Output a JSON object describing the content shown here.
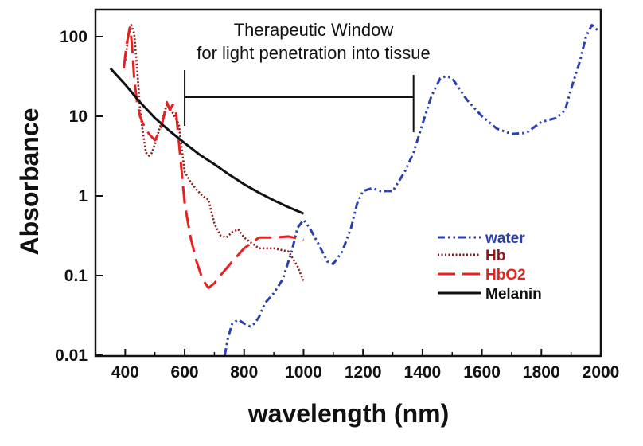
{
  "chart_data": {
    "type": "line",
    "title": "",
    "xlabel": "wavelength (nm)",
    "ylabel": "Absorbance",
    "xlim": [
      300,
      2000
    ],
    "ylim": [
      0.01,
      200
    ],
    "y_scale": "log",
    "grid": false,
    "legend_position": "center-right",
    "x_ticks": [
      400,
      600,
      800,
      1000,
      1200,
      1400,
      1600,
      1800,
      2000
    ],
    "x_tick_labels": [
      "400",
      "600",
      "800",
      "1000",
      "1200",
      "1400",
      "1600",
      "1800",
      "2000"
    ],
    "y_ticks": [
      0.01,
      0.1,
      1,
      10,
      100
    ],
    "y_tick_labels": [
      "0.01",
      "0.1",
      "1",
      "10",
      "100"
    ],
    "annotation": {
      "line1": "Therapeutic Window",
      "line2": "for light penetration into tissue",
      "range": [
        600,
        1370
      ]
    },
    "series": [
      {
        "name": "water",
        "color": "#2b3fb0",
        "dash": "dashdotdot",
        "x": [
          735,
          745,
          760,
          780,
          800,
          820,
          835,
          850,
          870,
          900,
          930,
          960,
          980,
          1000,
          1020,
          1050,
          1080,
          1100,
          1130,
          1160,
          1180,
          1200,
          1230,
          1260,
          1300,
          1340,
          1370,
          1400,
          1430,
          1460,
          1480,
          1500,
          1550,
          1600,
          1650,
          1700,
          1750,
          1800,
          1850,
          1880,
          1900,
          1930,
          1950,
          1970,
          1990
        ],
        "y": [
          0.01,
          0.016,
          0.025,
          0.028,
          0.025,
          0.023,
          0.025,
          0.03,
          0.045,
          0.06,
          0.09,
          0.2,
          0.4,
          0.5,
          0.4,
          0.25,
          0.15,
          0.14,
          0.2,
          0.4,
          0.8,
          1.15,
          1.25,
          1.15,
          1.15,
          2.0,
          3.5,
          8.0,
          18.0,
          30.0,
          32.0,
          30.0,
          16.0,
          10.0,
          7.0,
          6.0,
          6.2,
          8.5,
          9.5,
          12.0,
          22.0,
          50.0,
          100.0,
          140.0,
          120.0
        ]
      },
      {
        "name": "Hb",
        "color": "#8b1a1a",
        "dash": "dotted",
        "x": [
          400,
          410,
          420,
          430,
          440,
          450,
          460,
          470,
          480,
          490,
          500,
          520,
          540,
          560,
          580,
          600,
          620,
          640,
          660,
          680,
          700,
          720,
          740,
          760,
          780,
          800,
          850,
          900,
          950,
          980,
          1000
        ],
        "y": [
          50.0,
          100.0,
          140.0,
          110.0,
          40.0,
          12.0,
          6.0,
          3.5,
          3.2,
          3.5,
          4.5,
          8.0,
          14.0,
          11.0,
          8.0,
          2.0,
          1.5,
          1.2,
          1.0,
          0.9,
          0.45,
          0.32,
          0.3,
          0.35,
          0.38,
          0.3,
          0.22,
          0.22,
          0.2,
          0.13,
          0.085
        ]
      },
      {
        "name": "HbO2",
        "color": "#e82020",
        "dash": "longdash",
        "x": [
          395,
          405,
          415,
          420,
          425,
          430,
          440,
          450,
          460,
          480,
          500,
          520,
          530,
          540,
          550,
          560,
          570,
          580,
          600,
          620,
          640,
          660,
          680,
          700,
          720,
          760,
          800,
          850,
          900,
          950,
          1000
        ],
        "y": [
          40.0,
          80.0,
          130.0,
          100.0,
          60.0,
          30.0,
          15.0,
          10.0,
          8.0,
          6.0,
          5.0,
          7.0,
          10.0,
          15.0,
          12.0,
          14.0,
          12.0,
          5.0,
          0.8,
          0.3,
          0.15,
          0.09,
          0.07,
          0.08,
          0.1,
          0.15,
          0.22,
          0.3,
          0.3,
          0.31,
          0.28
        ]
      },
      {
        "name": "Melanin",
        "color": "#111111",
        "dash": "solid",
        "x": [
          350,
          400,
          450,
          500,
          550,
          600,
          650,
          700,
          750,
          800,
          850,
          900,
          950,
          1000
        ],
        "y": [
          40.0,
          25.0,
          15.0,
          9.5,
          6.5,
          4.6,
          3.3,
          2.5,
          1.85,
          1.4,
          1.1,
          0.88,
          0.72,
          0.6
        ]
      }
    ]
  }
}
